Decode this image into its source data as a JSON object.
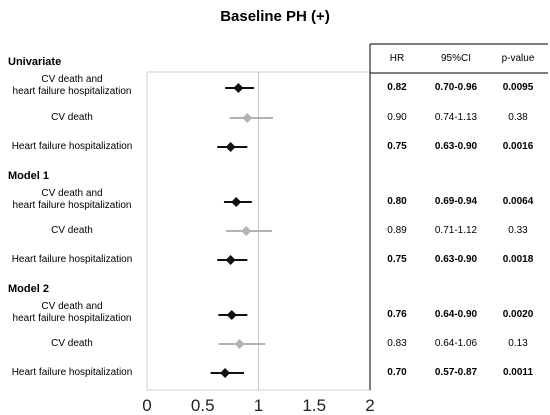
{
  "title": "Baseline PH (+)",
  "table_headers": [
    "HR",
    "95%CI",
    "p-value"
  ],
  "groups": [
    {
      "name": "Univariate",
      "rows": [
        {
          "label": [
            "CV death and",
            "heart failure hospitalization"
          ],
          "hr": "0.82",
          "ci": "0.70-0.96",
          "p": "0.0095",
          "significant": true
        },
        {
          "label": [
            "CV death"
          ],
          "hr": "0.90",
          "ci": "0.74-1.13",
          "p": "0.38",
          "significant": false
        },
        {
          "label": [
            "Heart failure hospitalization"
          ],
          "hr": "0.75",
          "ci": "0.63-0.90",
          "p": "0.0016",
          "significant": true
        }
      ]
    },
    {
      "name": "Model 1",
      "rows": [
        {
          "label": [
            "CV death and",
            "heart failure hospitalization"
          ],
          "hr": "0.80",
          "ci": "0.69-0.94",
          "p": "0.0064",
          "significant": true
        },
        {
          "label": [
            "CV death"
          ],
          "hr": "0.89",
          "ci": "0.71-1.12",
          "p": "0.33",
          "significant": false
        },
        {
          "label": [
            "Heart failure hospitalization"
          ],
          "hr": "0.75",
          "ci": "0.63-0.90",
          "p": "0.0018",
          "significant": true
        }
      ]
    },
    {
      "name": "Model 2",
      "rows": [
        {
          "label": [
            "CV death and",
            "heart failure hospitalization"
          ],
          "hr": "0.76",
          "ci": "0.64-0.90",
          "p": "0.0020",
          "significant": true
        },
        {
          "label": [
            "CV death"
          ],
          "hr": "0.83",
          "ci": "0.64-1.06",
          "p": "0.13",
          "significant": false
        },
        {
          "label": [
            "Heart failure hospitalization"
          ],
          "hr": "0.70",
          "ci": "0.57-0.87",
          "p": "0.0011",
          "significant": true
        }
      ]
    }
  ],
  "chart_data": {
    "type": "scatter",
    "subtype": "forest-plot",
    "title": "Baseline PH (+)",
    "xlim": [
      0,
      2
    ],
    "xticks": [
      "0",
      "0.5",
      "1",
      "1.5",
      "2"
    ],
    "reference_line": 1,
    "colors": {
      "significant": "#111111",
      "non_significant": "#b3b3b3",
      "reference": "#c8c8c8"
    },
    "points": [
      {
        "group": "Univariate",
        "label": "CV death and heart failure hospitalization",
        "hr": 0.82,
        "lo": 0.7,
        "hi": 0.96
      },
      {
        "group": "Univariate",
        "label": "CV death",
        "hr": 0.9,
        "lo": 0.74,
        "hi": 1.13
      },
      {
        "group": "Univariate",
        "label": "Heart failure hospitalization",
        "hr": 0.75,
        "lo": 0.63,
        "hi": 0.9
      },
      {
        "group": "Model 1",
        "label": "CV death and heart failure hospitalization",
        "hr": 0.8,
        "lo": 0.69,
        "hi": 0.94
      },
      {
        "group": "Model 1",
        "label": "CV death",
        "hr": 0.89,
        "lo": 0.71,
        "hi": 1.12
      },
      {
        "group": "Model 1",
        "label": "Heart failure hospitalization",
        "hr": 0.75,
        "lo": 0.63,
        "hi": 0.9
      },
      {
        "group": "Model 2",
        "label": "CV death and heart failure hospitalization",
        "hr": 0.76,
        "lo": 0.64,
        "hi": 0.9
      },
      {
        "group": "Model 2",
        "label": "CV death",
        "hr": 0.83,
        "lo": 0.64,
        "hi": 1.06
      },
      {
        "group": "Model 2",
        "label": "Heart failure hospitalization",
        "hr": 0.7,
        "lo": 0.57,
        "hi": 0.87
      }
    ]
  }
}
